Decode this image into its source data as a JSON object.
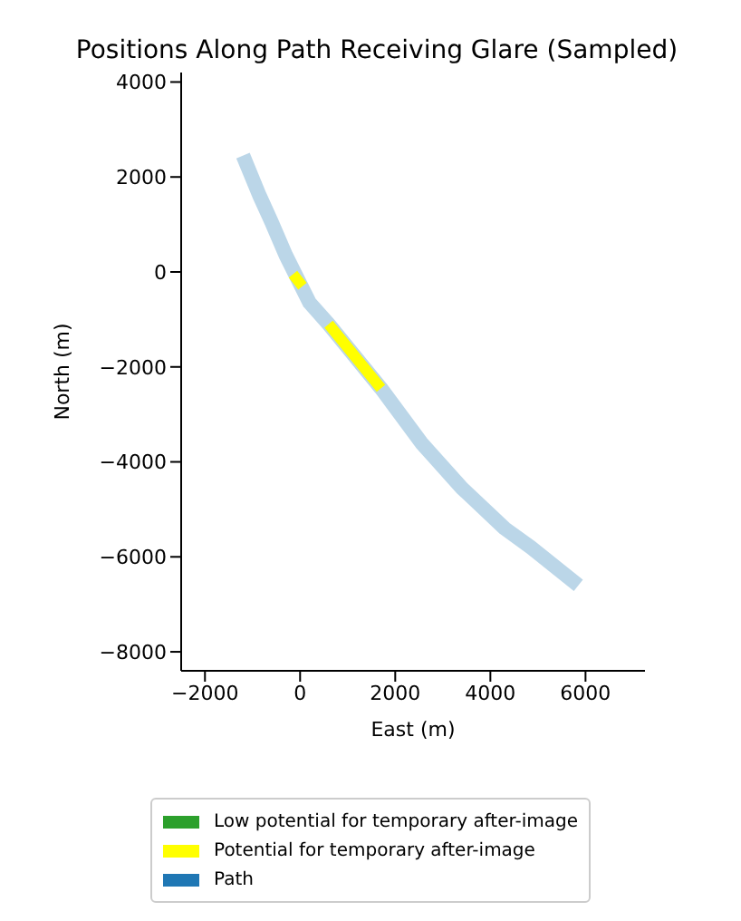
{
  "chart_data": {
    "type": "line",
    "title": "Positions Along Path Receiving Glare (Sampled)",
    "xlabel": "East (m)",
    "ylabel": "North (m)",
    "xlim": [
      -2500,
      7250
    ],
    "ylim": [
      -8400,
      4200
    ],
    "xticks": [
      {
        "value": -2000,
        "label": "−2000"
      },
      0,
      2000,
      4000,
      6000
    ],
    "yticks": [
      {
        "value": -8000,
        "label": "−8000"
      },
      {
        "value": -6000,
        "label": "−6000"
      },
      {
        "value": -4000,
        "label": "−4000"
      },
      {
        "value": -2000,
        "label": "−2000"
      },
      0,
      2000,
      4000
    ],
    "grid": false,
    "legend": "bottom",
    "marker": "none",
    "line_style": "solid",
    "series": [
      {
        "name": "Low potential for temporary after-image",
        "color": "#2ca02c"
      },
      {
        "name": "Potential for temporary after-image",
        "color": "#ffff00",
        "x": [
          -150,
          50,
          null,
          600,
          1700
        ],
        "values": [
          -50,
          -300,
          null,
          -1100,
          -2450
        ]
      },
      {
        "name": "Path",
        "color": "#1f77b4",
        "x": [
          -1200,
          -850,
          -600,
          -300,
          -50,
          200,
          600,
          1700,
          2550,
          3400,
          4300,
          4850,
          5850
        ],
        "values": [
          2450,
          1600,
          1050,
          350,
          -150,
          -650,
          -1100,
          -2450,
          -3600,
          -4550,
          -5400,
          -5800,
          -6600
        ]
      }
    ]
  }
}
